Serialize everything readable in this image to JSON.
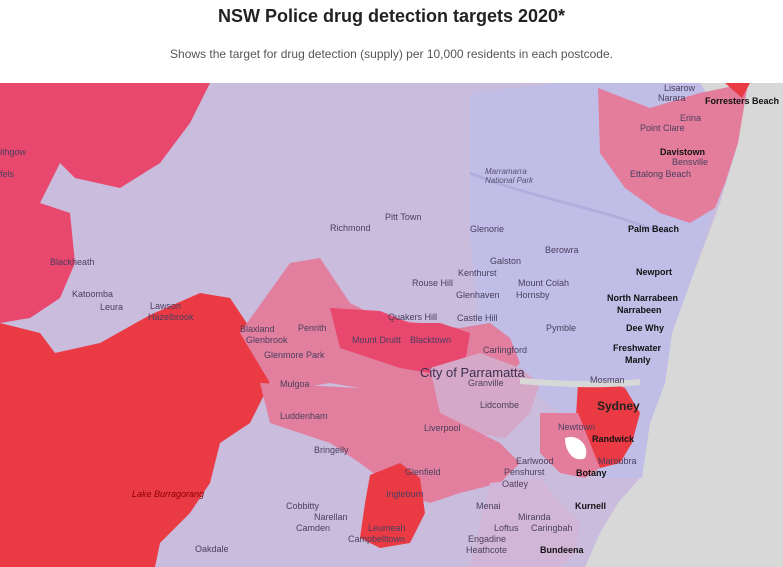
{
  "header": {
    "title": "NSW Police drug detection targets 2020*",
    "subtitle": "Shows the target for drug detection (supply) per 10,000 residents in each postcode."
  },
  "colors": {
    "low": "#c9bcdc",
    "low_mid": "#d6a8c8",
    "mid": "#e27f9f",
    "high": "#e8476e",
    "very_high": "#ea3b45",
    "water": "#d8d8d8",
    "ocean": "#d7d7d7"
  },
  "map": {
    "labels": [
      {
        "id": "lisarow",
        "text": "Lisarow"
      },
      {
        "id": "narara",
        "text": "Narara"
      },
      {
        "id": "forresters-beach",
        "text": "Forresters Beach"
      },
      {
        "id": "erina",
        "text": "Erina"
      },
      {
        "id": "point-clare",
        "text": "Point Clare"
      },
      {
        "id": "davistown",
        "text": "Davistown"
      },
      {
        "id": "bensville",
        "text": "Bensville"
      },
      {
        "id": "ettalong-beach",
        "text": "Ettalong Beach"
      },
      {
        "id": "lithgow",
        "text": "ithgow"
      },
      {
        "id": "fels",
        "text": "fels"
      },
      {
        "id": "marramarra",
        "text": "Marramarra National Park"
      },
      {
        "id": "pitt-town",
        "text": "Pitt Town"
      },
      {
        "id": "richmond",
        "text": "Richmond"
      },
      {
        "id": "glenorie",
        "text": "Glenorie"
      },
      {
        "id": "palm-beach",
        "text": "Palm Beach"
      },
      {
        "id": "galston",
        "text": "Galston"
      },
      {
        "id": "berowra",
        "text": "Berowra"
      },
      {
        "id": "blackheath",
        "text": "Blackheath"
      },
      {
        "id": "kenthurst",
        "text": "Kenthurst"
      },
      {
        "id": "newport",
        "text": "Newport"
      },
      {
        "id": "rouse-hill",
        "text": "Rouse Hill"
      },
      {
        "id": "mount-colah",
        "text": "Mount Colah"
      },
      {
        "id": "katoomba",
        "text": "Katoomba"
      },
      {
        "id": "glenhaven",
        "text": "Glenhaven"
      },
      {
        "id": "hornsby",
        "text": "Hornsby"
      },
      {
        "id": "north-narrabeen",
        "text": "North Narrabeen"
      },
      {
        "id": "lawson",
        "text": "Lawson"
      },
      {
        "id": "leura",
        "text": "Leura"
      },
      {
        "id": "hazelbrook",
        "text": "Hazelbrook"
      },
      {
        "id": "narrabeen",
        "text": "Narrabeen"
      },
      {
        "id": "quakers-hill",
        "text": "Quakers Hill"
      },
      {
        "id": "castle-hill",
        "text": "Castle Hill"
      },
      {
        "id": "penrith",
        "text": "Penrith"
      },
      {
        "id": "pymble",
        "text": "Pymble"
      },
      {
        "id": "dee-why",
        "text": "Dee Why"
      },
      {
        "id": "blaxland",
        "text": "Blaxland"
      },
      {
        "id": "glenbrook",
        "text": "Glenbrook"
      },
      {
        "id": "mount-druitt",
        "text": "Mount Druitt"
      },
      {
        "id": "blacktown",
        "text": "Blacktown"
      },
      {
        "id": "freshwater",
        "text": "Freshwater"
      },
      {
        "id": "carlingford",
        "text": "Carlingford"
      },
      {
        "id": "glenmore-park",
        "text": "Glenmore Park"
      },
      {
        "id": "manly",
        "text": "Manly"
      },
      {
        "id": "city-of-parramatta",
        "text": "City of Parramatta"
      },
      {
        "id": "mosman",
        "text": "Mosman"
      },
      {
        "id": "mulgoa",
        "text": "Mulgoa"
      },
      {
        "id": "granville",
        "text": "Granville"
      },
      {
        "id": "sydney",
        "text": "Sydney"
      },
      {
        "id": "luddenham",
        "text": "Luddenham"
      },
      {
        "id": "lidcombe",
        "text": "Lidcombe"
      },
      {
        "id": "liverpool",
        "text": "Liverpool"
      },
      {
        "id": "newtown",
        "text": "Newtown"
      },
      {
        "id": "randwick",
        "text": "Randwick"
      },
      {
        "id": "bringelly",
        "text": "Bringelly"
      },
      {
        "id": "earlwood",
        "text": "Earlwood"
      },
      {
        "id": "maroubra",
        "text": "Maroubra"
      },
      {
        "id": "glenfield",
        "text": "Glenfield"
      },
      {
        "id": "penshurst",
        "text": "Penshurst"
      },
      {
        "id": "botany",
        "text": "Botany"
      },
      {
        "id": "oatley",
        "text": "Oatley"
      },
      {
        "id": "lake-burragorang",
        "text": "Lake Burragorang"
      },
      {
        "id": "ingleburn",
        "text": "Ingleburn"
      },
      {
        "id": "kurnell",
        "text": "Kurnell"
      },
      {
        "id": "cobbitty",
        "text": "Cobbitty"
      },
      {
        "id": "menai",
        "text": "Menai"
      },
      {
        "id": "narellan",
        "text": "Narellan"
      },
      {
        "id": "miranda",
        "text": "Miranda"
      },
      {
        "id": "leumeah",
        "text": "Leumeah"
      },
      {
        "id": "camden",
        "text": "Camden"
      },
      {
        "id": "loftus",
        "text": "Loftus"
      },
      {
        "id": "caringbah",
        "text": "Caringbah"
      },
      {
        "id": "campbelltown",
        "text": "Campbelltown"
      },
      {
        "id": "engadine",
        "text": "Engadine"
      },
      {
        "id": "oakdale",
        "text": "Oakdale"
      },
      {
        "id": "heathcote",
        "text": "Heathcote"
      },
      {
        "id": "bundeena",
        "text": "Bundeena"
      }
    ]
  }
}
